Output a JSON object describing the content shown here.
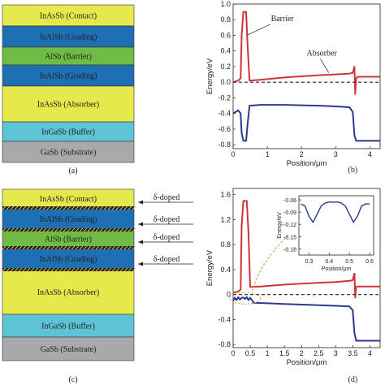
{
  "panel_a": {
    "caption": "(a)",
    "layers": [
      {
        "label": "InAsSb (Contact)",
        "color": "#e6e94b"
      },
      {
        "label": "InAlSb (Grading)",
        "color": "#1f6fb5"
      },
      {
        "label": "AlSb (Barrier)",
        "color": "#6fbb45"
      },
      {
        "label": "InAlSb (Grading)",
        "color": "#1f6fb5"
      },
      {
        "label": "InAsSb (Absorber)",
        "color": "#e6e94b"
      },
      {
        "label": "InGaSb (Buffer)",
        "color": "#5fc3d6"
      },
      {
        "label": "GaSb (Substrate)",
        "color": "#a7a9ab"
      }
    ]
  },
  "panel_c": {
    "caption": "(c)",
    "layers": [
      {
        "label": "InAsSb (Contact)",
        "color": "#e6e94b"
      },
      {
        "label": "InAlSb (Grading)",
        "color": "#1f6fb5"
      },
      {
        "label": "AlSb (Barrier)",
        "color": "#6fbb45"
      },
      {
        "label": "InAlSb (Grading)",
        "color": "#1f6fb5"
      },
      {
        "label": "InAsSb (Absorber)",
        "color": "#e6e94b"
      },
      {
        "label": "InGaSb (Buffer)",
        "color": "#5fc3d6"
      },
      {
        "label": "GaSb (Substrate)",
        "color": "#a7a9ab"
      }
    ],
    "doped_label": "δ-doped",
    "doped_count": 4
  },
  "chart_data": [
    {
      "type": "line",
      "panel": "(b)",
      "xlabel": "Position/μm",
      "ylabel": "Energy/eV",
      "xlim": [
        0,
        4.3
      ],
      "ylim": [
        -0.85,
        1.0
      ],
      "xticks": [
        "0",
        "1",
        "2",
        "3",
        "4"
      ],
      "yticks": [
        "-0.8",
        "-0.6",
        "-0.4",
        "-0.2",
        "0.0",
        "0.2",
        "0.4",
        "0.6",
        "0.8",
        "1.0"
      ],
      "annotations": [
        "Barrier",
        "Absorber"
      ],
      "series": [
        {
          "color": "#d0343a",
          "x": [
            0,
            0.15,
            0.22,
            0.25,
            0.3,
            0.38,
            0.42,
            0.48,
            0.8,
            1.5,
            2.5,
            3.0,
            3.4,
            3.5,
            3.55,
            3.57,
            3.6,
            3.65,
            3.75,
            4.3
          ],
          "y": [
            0.0,
            0.02,
            0.05,
            0.6,
            0.9,
            0.9,
            0.5,
            0.02,
            0.03,
            0.06,
            0.09,
            0.1,
            0.11,
            0.12,
            0.2,
            -0.15,
            0.05,
            0.07,
            0.07,
            0.07
          ]
        },
        {
          "color": "#2c3a8c",
          "x": [
            0,
            0.15,
            0.22,
            0.25,
            0.3,
            0.38,
            0.42,
            0.48,
            0.8,
            1.5,
            2.5,
            3.0,
            3.4,
            3.5,
            3.55,
            3.6,
            3.75,
            4.3
          ],
          "y": [
            -0.4,
            -0.36,
            -0.4,
            -0.65,
            -0.75,
            -0.75,
            -0.55,
            -0.3,
            -0.29,
            -0.29,
            -0.3,
            -0.31,
            -0.32,
            -0.38,
            -0.68,
            -0.75,
            -0.75,
            -0.75
          ]
        },
        {
          "color": "#222222",
          "dashed": true,
          "x": [
            0,
            4.3
          ],
          "y": [
            0,
            0
          ]
        }
      ]
    },
    {
      "type": "line",
      "panel": "(d)",
      "xlabel": "Position/μm",
      "ylabel": "Energy/eV",
      "xlim": [
        0,
        4.3
      ],
      "ylim": [
        -0.85,
        1.7
      ],
      "xticks": [
        "0",
        "0.5",
        "1",
        "1.5",
        "2",
        "2.5",
        "3",
        "3.5",
        "4"
      ],
      "yticks": [
        "-0.8",
        "-0.4",
        "0",
        "0.4",
        "0.8",
        "1.2",
        "1.6"
      ],
      "series": [
        {
          "color": "#d0343a",
          "x": [
            0,
            0.15,
            0.22,
            0.25,
            0.3,
            0.4,
            0.45,
            0.5,
            0.8,
            1.5,
            2.5,
            3.0,
            3.4,
            3.5,
            3.55,
            3.57,
            3.6,
            3.65,
            3.75,
            4.3
          ],
          "y": [
            0.03,
            0.05,
            0.08,
            1.1,
            1.5,
            1.5,
            1.0,
            0.12,
            0.13,
            0.16,
            0.19,
            0.2,
            0.22,
            0.23,
            0.35,
            -0.05,
            0.12,
            0.13,
            0.13,
            0.13
          ]
        },
        {
          "color": "#2c3a8c",
          "x": [
            0,
            0.05,
            0.1,
            0.15,
            0.2,
            0.25,
            0.3,
            0.35,
            0.4,
            0.45,
            0.5,
            0.55,
            0.6,
            1.0,
            1.5,
            2.5,
            3.0,
            3.4,
            3.5,
            3.55,
            3.6,
            3.75,
            4.3
          ],
          "y": [
            -0.1,
            -0.05,
            -0.09,
            -0.04,
            -0.08,
            -0.05,
            -0.05,
            -0.07,
            -0.04,
            -0.09,
            -0.05,
            -0.09,
            -0.13,
            -0.14,
            -0.15,
            -0.17,
            -0.18,
            -0.19,
            -0.25,
            -0.62,
            -0.74,
            -0.74,
            -0.74
          ]
        },
        {
          "color": "#222222",
          "dashed": true,
          "x": [
            0,
            4.3
          ],
          "y": [
            0,
            0
          ]
        }
      ],
      "inset": {
        "xlabel": "Position/μm",
        "ylabel": "Energy/eV",
        "xlim": [
          0.25,
          0.62
        ],
        "ylim": [
          -0.195,
          -0.05
        ],
        "xticks": [
          "0.3",
          "0.4",
          "0.5",
          "0.6"
        ],
        "yticks": [
          "-0.06",
          "-0.09",
          "-0.12",
          "-0.15",
          "-0.18"
        ],
        "series": [
          {
            "color": "#2c3a8c",
            "x": [
              0.26,
              0.28,
              0.3,
              0.32,
              0.34,
              0.36,
              0.38,
              0.4,
              0.42,
              0.44,
              0.46,
              0.48,
              0.5,
              0.52,
              0.54,
              0.56,
              0.58,
              0.6
            ],
            "y": [
              -0.07,
              -0.075,
              -0.1,
              -0.115,
              -0.095,
              -0.075,
              -0.068,
              -0.065,
              -0.066,
              -0.065,
              -0.068,
              -0.075,
              -0.095,
              -0.115,
              -0.1,
              -0.075,
              -0.07,
              -0.07
            ]
          }
        ]
      }
    }
  ]
}
